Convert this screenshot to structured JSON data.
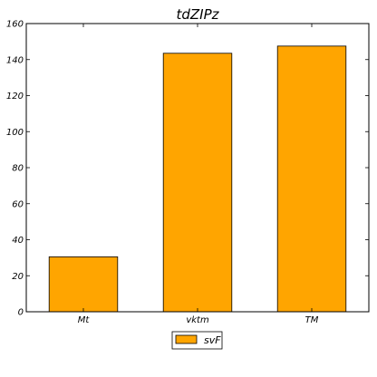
{
  "chart_data": {
    "type": "bar",
    "title": "tdZIPz",
    "xlabel": "",
    "ylabel": "",
    "categories": [
      "Mt",
      "vktm",
      "TM"
    ],
    "series": [
      {
        "name": "svF",
        "values": [
          30.5,
          143.5,
          147.5
        ],
        "color": "#ffa500"
      }
    ],
    "ylim": [
      0,
      160
    ],
    "yticks": [
      0,
      20,
      40,
      60,
      80,
      100,
      120,
      140,
      160
    ],
    "grid": false,
    "legend_position": "bottom-center",
    "bar_edge_color": "#000000"
  }
}
